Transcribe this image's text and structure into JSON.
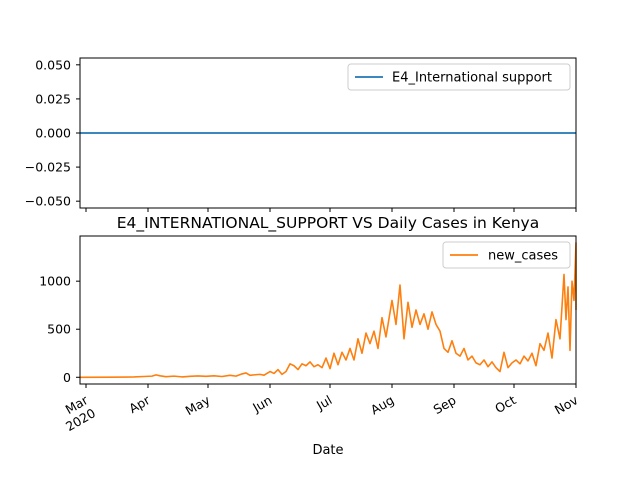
{
  "chart_data": [
    {
      "type": "line",
      "title": "",
      "xlabel": "",
      "ylabel": "",
      "ylim": [
        -0.055,
        0.055
      ],
      "yticks": [
        0.05,
        0.025,
        0.0,
        -0.025,
        -0.05
      ],
      "ytick_labels": [
        "0.050",
        "0.025",
        "0.000",
        "−0.025",
        "−0.050"
      ],
      "xlim": [
        "2020-02-27",
        "2020-11-01"
      ],
      "legend_position": "upper-right",
      "series": [
        {
          "name": "E4_International support",
          "color": "#1f77b4",
          "x": [
            "2020-02-27",
            "2020-11-01"
          ],
          "values": [
            0,
            0
          ]
        }
      ]
    },
    {
      "type": "line",
      "title": "E4_INTERNATIONAL_SUPPORT VS Daily Cases in Kenya",
      "xlabel": "Date",
      "ylabel": "",
      "ylim": [
        -70,
        1470
      ],
      "yticks": [
        0,
        500,
        1000
      ],
      "ytick_labels": [
        "0",
        "500",
        "1000"
      ],
      "xlim": [
        "2020-02-27",
        "2020-11-01"
      ],
      "xticks": [
        "2020-03-01",
        "2020-04-01",
        "2020-05-01",
        "2020-06-01",
        "2020-07-01",
        "2020-08-01",
        "2020-09-01",
        "2020-10-01",
        "2020-11-01"
      ],
      "xtick_labels": [
        "Mar\n2020",
        "Apr",
        "May",
        "Jun",
        "Jul",
        "Aug",
        "Sep",
        "Oct",
        "Nov"
      ],
      "legend_position": "upper-right",
      "series": [
        {
          "name": "new_cases",
          "color": "#ff7f0e",
          "points": [
            [
              "2020-02-27",
              0
            ],
            [
              "2020-03-13",
              1
            ],
            [
              "2020-03-25",
              3
            ],
            [
              "2020-03-30",
              8
            ],
            [
              "2020-04-03",
              12
            ],
            [
              "2020-04-05",
              25
            ],
            [
              "2020-04-07",
              15
            ],
            [
              "2020-04-10",
              6
            ],
            [
              "2020-04-14",
              12
            ],
            [
              "2020-04-18",
              4
            ],
            [
              "2020-04-22",
              10
            ],
            [
              "2020-04-26",
              14
            ],
            [
              "2020-04-30",
              10
            ],
            [
              "2020-05-04",
              15
            ],
            [
              "2020-05-08",
              8
            ],
            [
              "2020-05-12",
              20
            ],
            [
              "2020-05-15",
              12
            ],
            [
              "2020-05-18",
              35
            ],
            [
              "2020-05-20",
              45
            ],
            [
              "2020-05-22",
              20
            ],
            [
              "2020-05-24",
              25
            ],
            [
              "2020-05-27",
              30
            ],
            [
              "2020-05-29",
              22
            ],
            [
              "2020-06-01",
              60
            ],
            [
              "2020-06-03",
              40
            ],
            [
              "2020-06-05",
              80
            ],
            [
              "2020-06-07",
              30
            ],
            [
              "2020-06-09",
              60
            ],
            [
              "2020-06-11",
              140
            ],
            [
              "2020-06-13",
              120
            ],
            [
              "2020-06-15",
              80
            ],
            [
              "2020-06-17",
              140
            ],
            [
              "2020-06-19",
              120
            ],
            [
              "2020-06-21",
              160
            ],
            [
              "2020-06-23",
              110
            ],
            [
              "2020-06-25",
              130
            ],
            [
              "2020-06-27",
              100
            ],
            [
              "2020-06-29",
              200
            ],
            [
              "2020-07-01",
              90
            ],
            [
              "2020-07-03",
              250
            ],
            [
              "2020-07-05",
              130
            ],
            [
              "2020-07-07",
              260
            ],
            [
              "2020-07-09",
              180
            ],
            [
              "2020-07-11",
              300
            ],
            [
              "2020-07-13",
              180
            ],
            [
              "2020-07-15",
              400
            ],
            [
              "2020-07-17",
              250
            ],
            [
              "2020-07-19",
              460
            ],
            [
              "2020-07-21",
              350
            ],
            [
              "2020-07-23",
              480
            ],
            [
              "2020-07-25",
              300
            ],
            [
              "2020-07-27",
              620
            ],
            [
              "2020-07-29",
              420
            ],
            [
              "2020-08-01",
              800
            ],
            [
              "2020-08-03",
              550
            ],
            [
              "2020-08-05",
              960
            ],
            [
              "2020-08-07",
              400
            ],
            [
              "2020-08-09",
              780
            ],
            [
              "2020-08-11",
              520
            ],
            [
              "2020-08-13",
              700
            ],
            [
              "2020-08-15",
              550
            ],
            [
              "2020-08-17",
              660
            ],
            [
              "2020-08-19",
              500
            ],
            [
              "2020-08-21",
              680
            ],
            [
              "2020-08-23",
              550
            ],
            [
              "2020-08-25",
              480
            ],
            [
              "2020-08-27",
              300
            ],
            [
              "2020-08-29",
              260
            ],
            [
              "2020-08-31",
              380
            ],
            [
              "2020-09-02",
              250
            ],
            [
              "2020-09-04",
              220
            ],
            [
              "2020-09-06",
              300
            ],
            [
              "2020-09-08",
              180
            ],
            [
              "2020-09-10",
              220
            ],
            [
              "2020-09-12",
              150
            ],
            [
              "2020-09-14",
              130
            ],
            [
              "2020-09-16",
              180
            ],
            [
              "2020-09-18",
              110
            ],
            [
              "2020-09-20",
              160
            ],
            [
              "2020-09-22",
              100
            ],
            [
              "2020-09-24",
              60
            ],
            [
              "2020-09-26",
              260
            ],
            [
              "2020-09-28",
              100
            ],
            [
              "2020-09-30",
              150
            ],
            [
              "2020-10-02",
              180
            ],
            [
              "2020-10-04",
              140
            ],
            [
              "2020-10-06",
              220
            ],
            [
              "2020-10-08",
              170
            ],
            [
              "2020-10-10",
              250
            ],
            [
              "2020-10-12",
              120
            ],
            [
              "2020-10-14",
              350
            ],
            [
              "2020-10-16",
              280
            ],
            [
              "2020-10-18",
              460
            ],
            [
              "2020-10-20",
              200
            ],
            [
              "2020-10-22",
              600
            ],
            [
              "2020-10-24",
              400
            ],
            [
              "2020-10-26",
              1070
            ],
            [
              "2020-10-27",
              600
            ],
            [
              "2020-10-28",
              940
            ],
            [
              "2020-10-29",
              280
            ],
            [
              "2020-10-30",
              1000
            ],
            [
              "2020-10-31",
              800
            ],
            [
              "2020-11-01",
              1400
            ],
            [
              "2020-11-02",
              700
            ]
          ]
        }
      ]
    }
  ]
}
